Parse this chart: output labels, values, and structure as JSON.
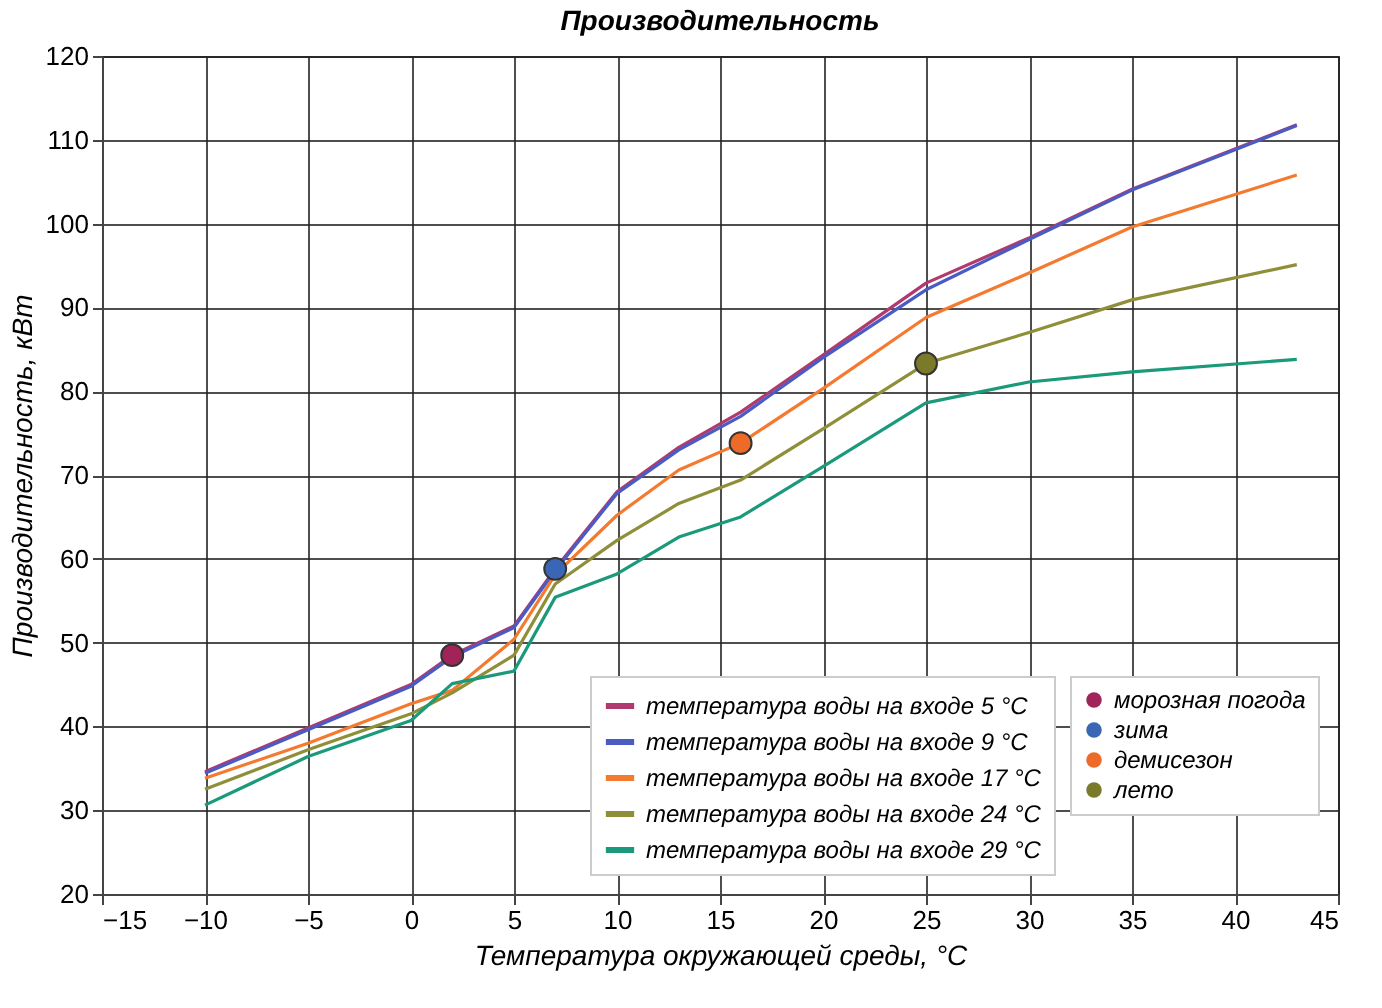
{
  "chart_data": {
    "type": "line",
    "title": "Производительность",
    "xlabel": "Температура окружающей среды, °C",
    "ylabel": "Производительность, кВт",
    "x": [
      -10,
      -5,
      0,
      2,
      5,
      7,
      10,
      13,
      16,
      20,
      25,
      30,
      35,
      43
    ],
    "xlim": [
      -15,
      45
    ],
    "xticks": [
      -15,
      -10,
      -5,
      0,
      5,
      10,
      15,
      20,
      25,
      30,
      35,
      40,
      45
    ],
    "ylim": [
      20,
      120
    ],
    "yticks": [
      20,
      30,
      40,
      50,
      60,
      70,
      80,
      90,
      100,
      110,
      120
    ],
    "grid": true,
    "legend": "bottom right",
    "line_style": "solid",
    "series": [
      {
        "name": "температура воды на входе 5 °C",
        "color": "#b03a6e",
        "values": [
          34.6,
          39.8,
          45,
          48.5,
          52,
          58.8,
          68,
          73.3,
          77.5,
          84.3,
          92.9,
          98.3,
          104.1,
          111.8
        ]
      },
      {
        "name": "температура воды на входе 9 °C",
        "color": "#4a5cc4",
        "values": [
          34.4,
          39.6,
          44.8,
          48.3,
          51.8,
          58.6,
          67.8,
          73,
          77,
          84,
          92.1,
          98.1,
          104,
          111.7
        ]
      },
      {
        "name": "температура воды на входе 17 °C",
        "color": "#f47a30",
        "values": [
          33.8,
          38,
          42.7,
          44.3,
          50.4,
          58.1,
          65.2,
          70.6,
          73.8,
          80.3,
          88.8,
          94.1,
          99.6,
          105.8
        ]
      },
      {
        "name": "температура воды на входе 24 °C",
        "color": "#8f8f3a",
        "values": [
          32.5,
          37.2,
          41.5,
          44,
          48.5,
          57,
          62.2,
          66.6,
          69.4,
          75.5,
          83.3,
          87,
          90.9,
          95.1
        ]
      },
      {
        "name": "температура воды на входе 29 °C",
        "color": "#1a9a7a",
        "values": [
          30.6,
          36.4,
          40.7,
          45.1,
          46.6,
          55.4,
          58.2,
          62.6,
          65,
          71,
          78.6,
          81.1,
          82.3,
          83.8
        ]
      },
      {
        "name": "морозная погода",
        "type": "scatter",
        "color": "#a0245a",
        "x": [
          2
        ],
        "values": [
          48.5
        ]
      },
      {
        "name": "зима",
        "type": "scatter",
        "color": "#3a66b5",
        "x": [
          7
        ],
        "values": [
          58.8
        ]
      },
      {
        "name": "демисезон",
        "type": "scatter",
        "color": "#ed6a28",
        "x": [
          16
        ],
        "values": [
          73.8
        ]
      },
      {
        "name": "лето",
        "type": "scatter",
        "color": "#7a7a2a",
        "x": [
          25
        ],
        "values": [
          83.3
        ]
      }
    ]
  }
}
